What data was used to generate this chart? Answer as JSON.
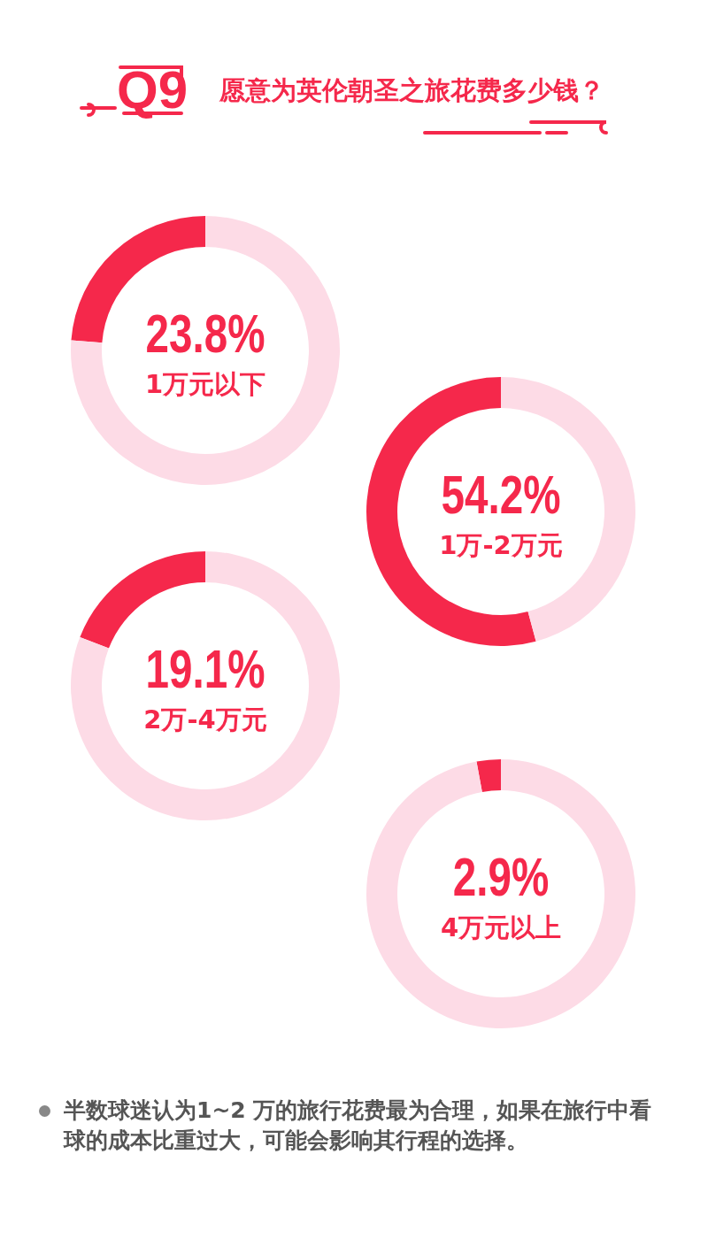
{
  "chart_data": [
    {
      "type": "donut",
      "title": "Q9",
      "subtitle": "愿意为英伦朝圣之旅花费多少钱？",
      "categories": [
        "1万元以下",
        null
      ],
      "values": [
        23.8,
        76.2
      ],
      "colors": [
        "#f5284b",
        "#fddbe6"
      ],
      "value_labels": [
        "23.8%",
        null
      ]
    },
    {
      "type": "donut",
      "categories": [
        "1万-2万元",
        null
      ],
      "values": [
        54.2,
        45.8
      ],
      "colors": [
        "#f5284b",
        "#fddbe6"
      ],
      "value_labels": [
        "54.2%",
        null
      ]
    },
    {
      "type": "donut",
      "categories": [
        "2万-4万元",
        null
      ],
      "values": [
        19.1,
        80.9
      ],
      "colors": [
        "#f5284b",
        "#fddbe6"
      ],
      "value_labels": [
        "19.1%",
        null
      ]
    },
    {
      "type": "donut",
      "categories": [
        "4万元以上",
        null
      ],
      "values": [
        2.9,
        97.1
      ],
      "colors": [
        "#f5284b",
        "#fddbe6"
      ],
      "value_labels": [
        "2.9%",
        null
      ],
      "annotations": [
        "半数球迷认为1~2 万的旅行花费最为合理，如果在旅行中看球的成本比重过大，可能会影响其行程的选择。"
      ]
    }
  ]
}
